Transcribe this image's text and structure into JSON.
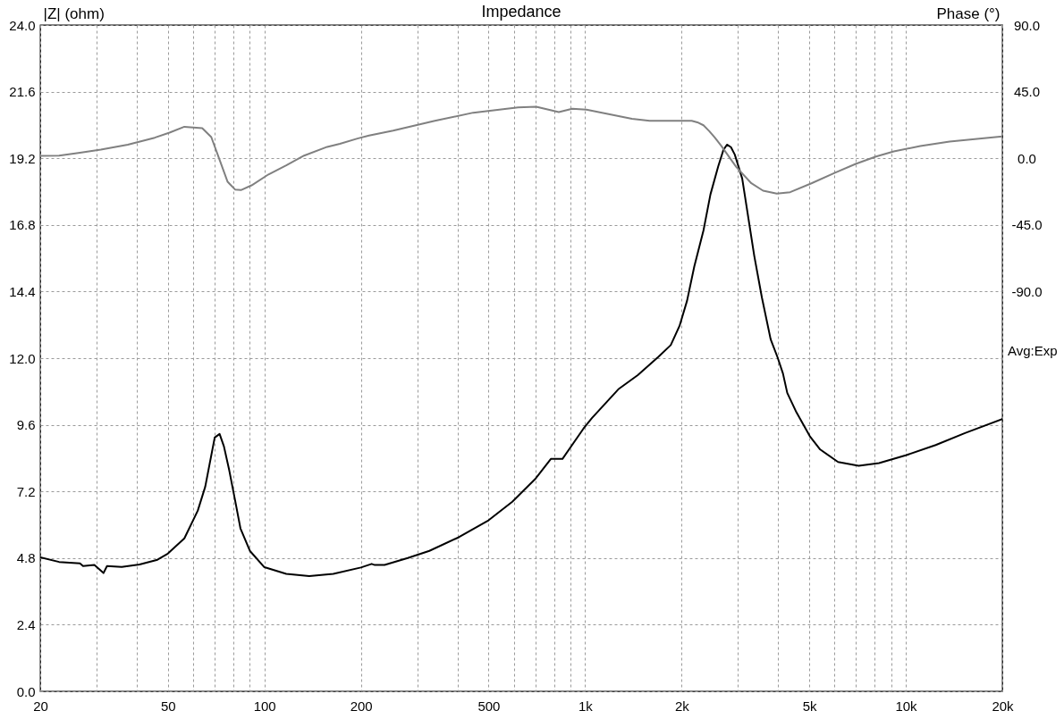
{
  "chart_data": {
    "type": "line",
    "title": "Impedance",
    "ylabel": "|Z| (ohm)",
    "y2label": "Phase (°)",
    "annotations": [
      "Avg:Exp"
    ],
    "log": "x",
    "grid": true,
    "xlim": [
      20,
      20000
    ],
    "xticks": [
      20,
      {
        "value": 30,
        "label": null
      },
      {
        "value": 40,
        "label": null
      },
      50,
      {
        "value": 60,
        "label": null
      },
      {
        "value": 70,
        "label": null
      },
      {
        "value": 80,
        "label": null
      },
      {
        "value": 90,
        "label": null
      },
      100,
      200,
      {
        "value": 300,
        "label": null
      },
      {
        "value": 400,
        "label": null
      },
      500,
      {
        "value": 600,
        "label": null
      },
      {
        "value": 700,
        "label": null
      },
      {
        "value": 800,
        "label": null
      },
      {
        "value": 900,
        "label": null
      },
      {
        "value": 1000,
        "label": "1k"
      },
      {
        "value": 2000,
        "label": "2k"
      },
      {
        "value": 3000,
        "label": null
      },
      {
        "value": 4000,
        "label": null
      },
      {
        "value": 5000,
        "label": "5k"
      },
      {
        "value": 6000,
        "label": null
      },
      {
        "value": 7000,
        "label": null
      },
      {
        "value": 8000,
        "label": null
      },
      {
        "value": 9000,
        "label": null
      },
      {
        "value": 10000,
        "label": "10k"
      },
      {
        "value": 20000,
        "label": "20k"
      }
    ],
    "ylim": [
      0,
      24
    ],
    "yticks": [
      {
        "value": 0,
        "label": "0.0"
      },
      2.4,
      4.8,
      7.2,
      9.6,
      {
        "value": 12,
        "label": "12.0"
      },
      14.4,
      16.8,
      19.2,
      21.6,
      {
        "value": 24,
        "label": "24.0"
      }
    ],
    "y2lim": [
      -360,
      90
    ],
    "y2ticks": [
      {
        "value": -90,
        "label": "-90.0"
      },
      {
        "value": -45,
        "label": "-45.0"
      },
      {
        "value": 0,
        "label": "0.0"
      },
      {
        "value": 45,
        "label": "45.0"
      },
      {
        "value": 90,
        "label": "90.0"
      }
    ],
    "series": [
      {
        "color": "#000000",
        "x": [
          20,
          22.9,
          26.6,
          27.2,
          29.5,
          31.5,
          32.3,
          35.9,
          40.8,
          46.4,
          50,
          56.3,
          62,
          65.4,
          70,
          72.5,
          74.8,
          77.7,
          81,
          84.2,
          90.1,
          100,
          117,
          138,
          164,
          200,
          216,
          221,
          237,
          280,
          327,
          404,
          500,
          593,
          698,
          782,
          850,
          988,
          1050,
          1270,
          1460,
          1690,
          1850,
          1970,
          2080,
          2190,
          2340,
          2460,
          2600,
          2700,
          2770,
          2850,
          2930,
          3090,
          3370,
          3560,
          3790,
          3980,
          4140,
          4270,
          4560,
          5020,
          5410,
          6150,
          7130,
          8250,
          10000,
          12400,
          15300,
          20000
        ],
        "values": [
          4.83,
          4.66,
          4.61,
          4.51,
          4.55,
          4.26,
          4.51,
          4.48,
          4.57,
          4.74,
          4.96,
          5.51,
          6.51,
          7.37,
          9.14,
          9.27,
          8.82,
          7.96,
          6.89,
          5.87,
          5.06,
          4.47,
          4.23,
          4.15,
          4.23,
          4.46,
          4.59,
          4.55,
          4.55,
          4.8,
          5.06,
          5.55,
          6.16,
          6.83,
          7.64,
          8.37,
          8.37,
          9.46,
          9.84,
          10.88,
          11.39,
          12.04,
          12.47,
          13.16,
          14.07,
          15.3,
          16.6,
          17.9,
          18.9,
          19.5,
          19.69,
          19.6,
          19.33,
          18.47,
          15.68,
          14.18,
          12.68,
          12.04,
          11.45,
          10.75,
          10.05,
          9.19,
          8.71,
          8.26,
          8.12,
          8.22,
          8.5,
          8.87,
          9.3,
          9.81
        ]
      },
      {
        "color": "#808080",
        "axis": "y2",
        "x": [
          20,
          22.9,
          26.6,
          30.9,
          37.5,
          45.5,
          50.6,
          56.3,
          64,
          68.3,
          72.7,
          76.8,
          81,
          84.5,
          91.2,
          103,
          117,
          133,
          157,
          172,
          195,
          212,
          252,
          340,
          448,
          618,
          704,
          828,
          912,
          1010,
          1400,
          1590,
          2150,
          2240,
          2340,
          2440,
          2540,
          2660,
          2960,
          3300,
          3590,
          3960,
          4360,
          5080,
          6020,
          6980,
          8080,
          9180,
          11100,
          13700,
          20000
        ],
        "values": [
          1.6,
          1.8,
          3.8,
          5.8,
          9.2,
          13.9,
          17.3,
          21.3,
          20.3,
          14.3,
          -1.8,
          -15.9,
          -21.1,
          -21.5,
          -18.3,
          -10.9,
          -4.8,
          1.8,
          7.7,
          9.8,
          13.3,
          15.3,
          18.7,
          25.3,
          30.8,
          34.4,
          34.8,
          31.2,
          33.4,
          32.8,
          26.7,
          25.3,
          25.3,
          24.3,
          22.3,
          18.3,
          13.9,
          8.3,
          -5.8,
          -16.9,
          -21.9,
          -23.9,
          -22.9,
          -16.9,
          -9.8,
          -3.8,
          1.2,
          4.6,
          8.3,
          11.3,
          14.7
        ]
      }
    ]
  }
}
